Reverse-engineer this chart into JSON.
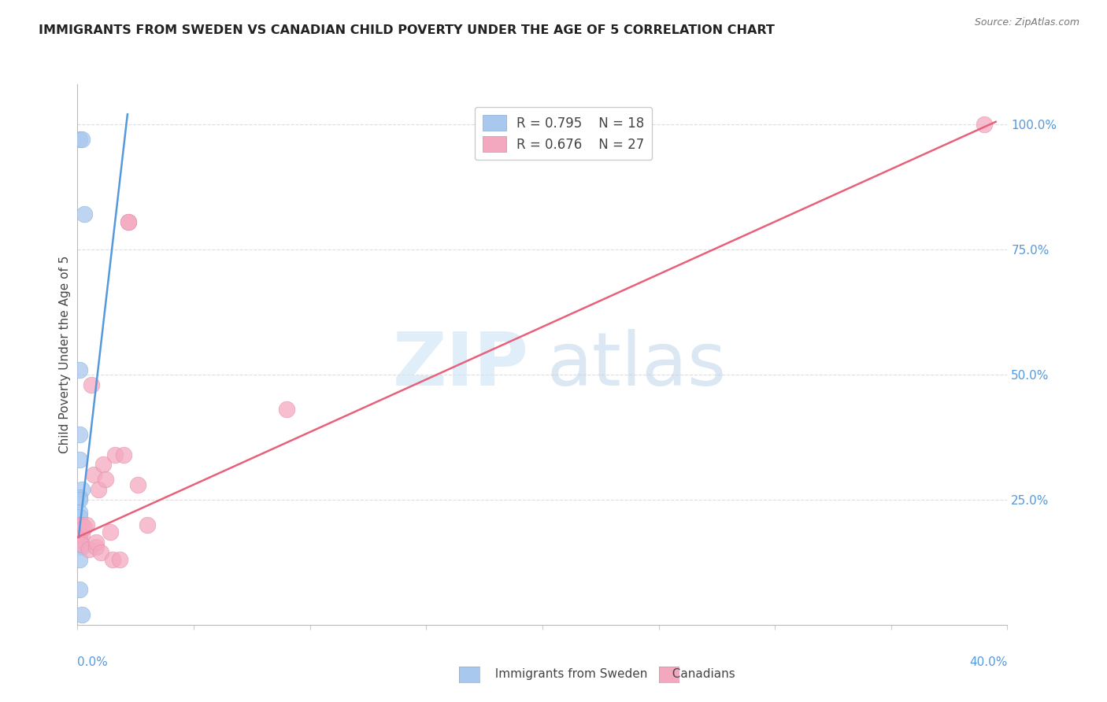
{
  "title": "IMMIGRANTS FROM SWEDEN VS CANADIAN CHILD POVERTY UNDER THE AGE OF 5 CORRELATION CHART",
  "source": "Source: ZipAtlas.com",
  "ylabel": "Child Poverty Under the Age of 5",
  "legend_blue_r": "R = 0.795",
  "legend_blue_n": "N = 18",
  "legend_pink_r": "R = 0.676",
  "legend_pink_n": "N = 27",
  "blue_color": "#a8c8ee",
  "pink_color": "#f4a8c0",
  "blue_line_color": "#5599dd",
  "pink_line_color": "#e8607a",
  "blue_points_x": [
    0.001,
    0.002,
    0.003,
    0.001,
    0.001,
    0.001,
    0.002,
    0.001,
    0.001,
    0.001,
    0.001,
    0.001,
    0.001,
    0.001,
    0.002,
    0.001,
    0.001,
    0.002
  ],
  "blue_points_y": [
    0.97,
    0.97,
    0.82,
    0.51,
    0.38,
    0.33,
    0.27,
    0.255,
    0.25,
    0.225,
    0.215,
    0.195,
    0.175,
    0.165,
    0.155,
    0.13,
    0.07,
    0.02
  ],
  "pink_points_x": [
    0.001,
    0.001,
    0.002,
    0.002,
    0.002,
    0.003,
    0.004,
    0.005,
    0.006,
    0.007,
    0.008,
    0.008,
    0.009,
    0.01,
    0.011,
    0.012,
    0.014,
    0.015,
    0.016,
    0.018,
    0.02,
    0.022,
    0.022,
    0.026,
    0.03,
    0.09,
    0.39
  ],
  "pink_points_y": [
    0.2,
    0.17,
    0.2,
    0.18,
    0.16,
    0.195,
    0.2,
    0.15,
    0.48,
    0.3,
    0.155,
    0.165,
    0.27,
    0.145,
    0.32,
    0.29,
    0.185,
    0.13,
    0.34,
    0.13,
    0.34,
    0.805,
    0.805,
    0.28,
    0.2,
    0.43,
    1.0
  ],
  "blue_line_x": [
    0.0005,
    0.0215
  ],
  "blue_line_y": [
    0.175,
    1.02
  ],
  "pink_line_x": [
    0.0,
    0.395
  ],
  "pink_line_y": [
    0.175,
    1.005
  ],
  "xlim": [
    0.0,
    0.4
  ],
  "ylim": [
    0.0,
    1.08
  ],
  "yticks": [
    0.25,
    0.5,
    0.75,
    1.0
  ],
  "ytick_labels": [
    "25.0%",
    "50.0%",
    "75.0%",
    "100.0%"
  ],
  "watermark_zip": "ZIP",
  "watermark_atlas": "atlas"
}
